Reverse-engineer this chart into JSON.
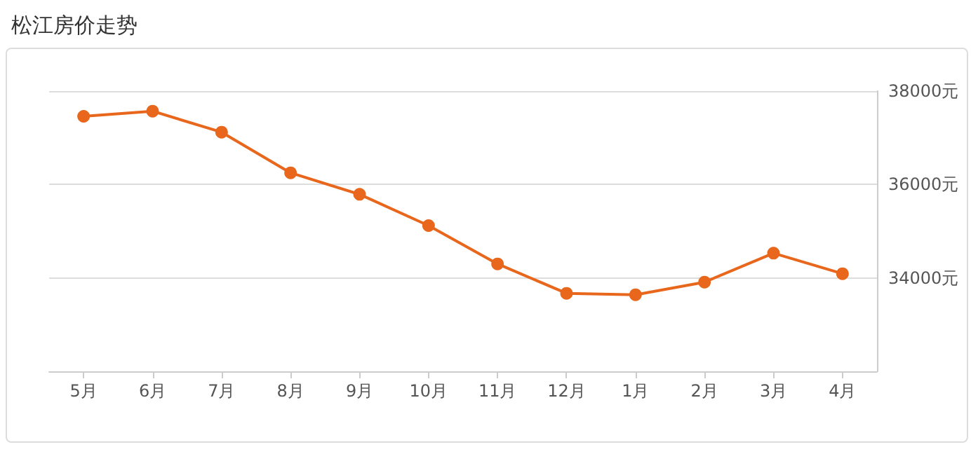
{
  "chart_data": {
    "type": "line",
    "title": "松江房价走势",
    "categories": [
      "5月",
      "6月",
      "7月",
      "8月",
      "9月",
      "10月",
      "11月",
      "12月",
      "1月",
      "2月",
      "3月",
      "4月"
    ],
    "series": [
      {
        "color": "#e8671c",
        "values": [
          37460,
          37570,
          37120,
          36250,
          35790,
          35120,
          34300,
          33670,
          33640,
          33910,
          34530,
          34090
        ]
      }
    ],
    "ylim": [
      32000,
      38000
    ],
    "yticks": [
      {
        "value": 34000,
        "label": "34000元"
      },
      {
        "value": 36000,
        "label": "36000元"
      },
      {
        "value": 38000,
        "label": "38000元"
      }
    ],
    "grid": "y",
    "marker": "circle",
    "line_style": "solid"
  }
}
